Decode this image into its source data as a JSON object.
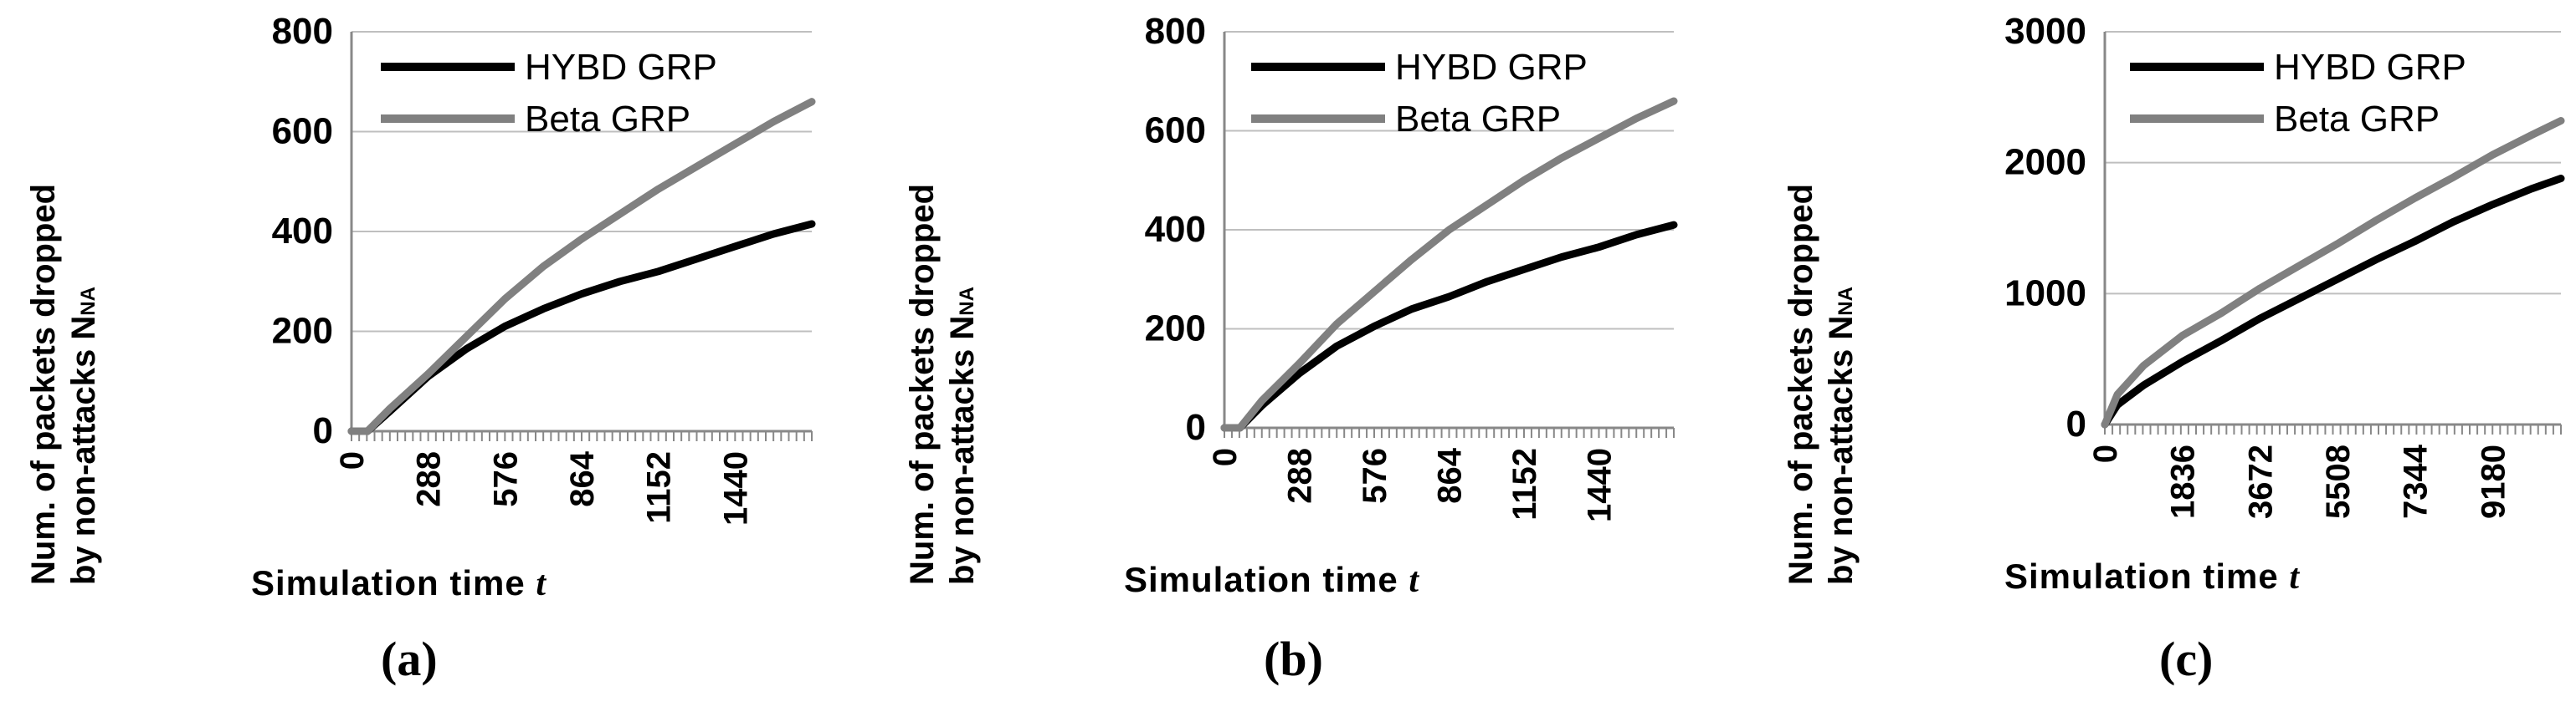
{
  "chart_data": [
    {
      "type": "line",
      "caption": "(a)",
      "ylabel_line1": "Num. of packets dropped",
      "ylabel_line2": "by non-attacks N",
      "ylabel_sub": "NA",
      "xlabel": "Simulation time",
      "xlabel_var": "t",
      "xlim": [
        0,
        1728
      ],
      "ylim": [
        0,
        800
      ],
      "x_ticks": [
        "0",
        "288",
        "576",
        "864",
        "1152",
        "1440"
      ],
      "y_ticks": [
        "0",
        "200",
        "400",
        "600",
        "800"
      ],
      "grid": "horizontal",
      "legend": "top-left inside",
      "series": [
        {
          "name": "HYBD GRP",
          "color": "#000000",
          "x": [
            0,
            60,
            144,
            288,
            432,
            576,
            720,
            864,
            1008,
            1152,
            1296,
            1440,
            1584,
            1728
          ],
          "y": [
            0,
            0,
            40,
            110,
            165,
            210,
            245,
            275,
            300,
            320,
            345,
            370,
            395,
            415
          ]
        },
        {
          "name": "Beta GRP",
          "color": "#808080",
          "x": [
            0,
            60,
            144,
            288,
            432,
            576,
            720,
            864,
            1008,
            1152,
            1296,
            1440,
            1584,
            1728
          ],
          "y": [
            0,
            0,
            45,
            115,
            190,
            265,
            330,
            385,
            435,
            485,
            530,
            575,
            620,
            660
          ]
        }
      ]
    },
    {
      "type": "line",
      "caption": "(b)",
      "ylabel_line1": "Num. of packets dropped",
      "ylabel_line2": "by non-attacks N",
      "ylabel_sub": "NA",
      "xlabel": "Simulation time",
      "xlabel_var": "t",
      "xlim": [
        0,
        1728
      ],
      "ylim": [
        0,
        800
      ],
      "x_ticks": [
        "0",
        "288",
        "576",
        "864",
        "1152",
        "1440"
      ],
      "y_ticks": [
        "0",
        "200",
        "400",
        "600",
        "800"
      ],
      "grid": "horizontal",
      "legend": "top-left inside",
      "series": [
        {
          "name": "HYBD GRP",
          "color": "#000000",
          "x": [
            0,
            60,
            144,
            288,
            432,
            576,
            720,
            864,
            1008,
            1152,
            1296,
            1440,
            1584,
            1728
          ],
          "y": [
            0,
            0,
            45,
            110,
            165,
            205,
            240,
            265,
            295,
            320,
            345,
            365,
            390,
            410
          ]
        },
        {
          "name": "Beta GRP",
          "color": "#808080",
          "x": [
            0,
            60,
            144,
            288,
            432,
            576,
            720,
            864,
            1008,
            1152,
            1296,
            1440,
            1584,
            1728
          ],
          "y": [
            0,
            0,
            55,
            130,
            210,
            275,
            340,
            400,
            450,
            500,
            545,
            585,
            625,
            660
          ]
        }
      ]
    },
    {
      "type": "line",
      "caption": "(c)",
      "ylabel_line1": "Num. of packets dropped",
      "ylabel_line2": "by non-attacks N",
      "ylabel_sub": "NA",
      "xlabel": "Simulation time",
      "xlabel_var": "t",
      "xlim": [
        0,
        10800
      ],
      "ylim": [
        0,
        3000
      ],
      "x_ticks": [
        "0",
        "1836",
        "3672",
        "5508",
        "7344",
        "9180"
      ],
      "y_ticks": [
        "0",
        "1000",
        "2000",
        "3000"
      ],
      "grid": "horizontal",
      "legend": "top-left inside",
      "series": [
        {
          "name": "HYBD GRP",
          "color": "#000000",
          "x": [
            0,
            300,
            918,
            1836,
            2754,
            3672,
            4590,
            5508,
            6426,
            7344,
            8262,
            9180,
            10098,
            10800
          ],
          "y": [
            0,
            150,
            300,
            480,
            640,
            810,
            960,
            1110,
            1260,
            1400,
            1550,
            1680,
            1800,
            1880
          ]
        },
        {
          "name": "Beta GRP",
          "color": "#808080",
          "x": [
            0,
            300,
            918,
            1836,
            2754,
            3672,
            4590,
            5508,
            6426,
            7344,
            8262,
            9180,
            10098,
            10800
          ],
          "y": [
            0,
            230,
            450,
            680,
            850,
            1040,
            1210,
            1380,
            1560,
            1730,
            1890,
            2060,
            2210,
            2320
          ]
        }
      ]
    }
  ]
}
